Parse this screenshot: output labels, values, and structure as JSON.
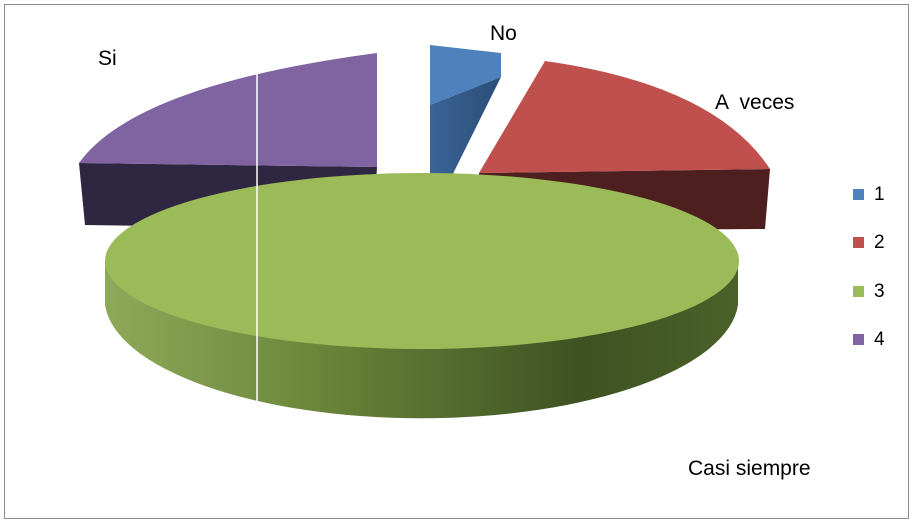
{
  "chart_data": {
    "type": "pie",
    "style": "3d-exploded",
    "categories": [
      "1",
      "2",
      "3",
      "4"
    ],
    "slice_labels": [
      "No",
      "A  veces",
      "Casi siempre",
      "Si"
    ],
    "values": [
      4,
      20,
      53,
      23
    ],
    "colors": [
      "#4f81bd",
      "#c0504d",
      "#9bbb59",
      "#8064a2"
    ],
    "legend": {
      "position": "right",
      "entries": [
        "1",
        "2",
        "3",
        "4"
      ]
    }
  }
}
